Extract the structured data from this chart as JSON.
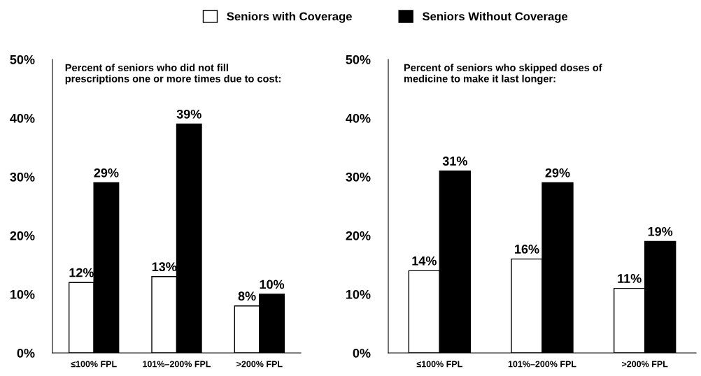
{
  "chart_data": [
    {
      "type": "bar",
      "title": "Percent of seniors who did not fill prescriptions one or more times due to cost:",
      "categories": [
        "≤100% FPL",
        "101%–200% FPL",
        ">200% FPL"
      ],
      "series": [
        {
          "name": "Seniors with Coverage",
          "color": "#ffffff",
          "values": [
            12,
            13,
            8
          ],
          "value_labels": [
            "12%",
            "13%",
            "8%"
          ]
        },
        {
          "name": "Seniors Without Coverage",
          "color": "#000000",
          "values": [
            29,
            39,
            10
          ],
          "value_labels": [
            "29%",
            "39%",
            "10%"
          ]
        }
      ],
      "ylim": [
        0,
        50
      ],
      "yticks": [
        {
          "value": 0,
          "label": "0%"
        },
        {
          "value": 10,
          "label": "10%"
        },
        {
          "value": 20,
          "label": "20%"
        },
        {
          "value": 30,
          "label": "30%"
        },
        {
          "value": 40,
          "label": "40%"
        },
        {
          "value": 50,
          "label": "50%"
        }
      ],
      "legend": "top"
    },
    {
      "type": "bar",
      "title": "Percent of seniors who skipped doses of medicine to make it last longer:",
      "categories": [
        "≤100% FPL",
        "101%–200% FPL",
        ">200% FPL"
      ],
      "series": [
        {
          "color": "#ffffff",
          "values": [
            14,
            16,
            11
          ],
          "value_labels": [
            "14%",
            "16%",
            "11%"
          ]
        },
        {
          "color": "#000000",
          "values": [
            31,
            29,
            19
          ],
          "value_labels": [
            "31%",
            "29%",
            "19%"
          ]
        }
      ],
      "ylim": [
        0,
        50
      ],
      "yticks": [
        {
          "value": 0,
          "label": "0%"
        },
        {
          "value": 10,
          "label": "10%"
        },
        {
          "value": 20,
          "label": "20%"
        },
        {
          "value": 30,
          "label": "30%"
        },
        {
          "value": 40,
          "label": "40%"
        },
        {
          "value": 50,
          "label": "50%"
        }
      ]
    }
  ]
}
